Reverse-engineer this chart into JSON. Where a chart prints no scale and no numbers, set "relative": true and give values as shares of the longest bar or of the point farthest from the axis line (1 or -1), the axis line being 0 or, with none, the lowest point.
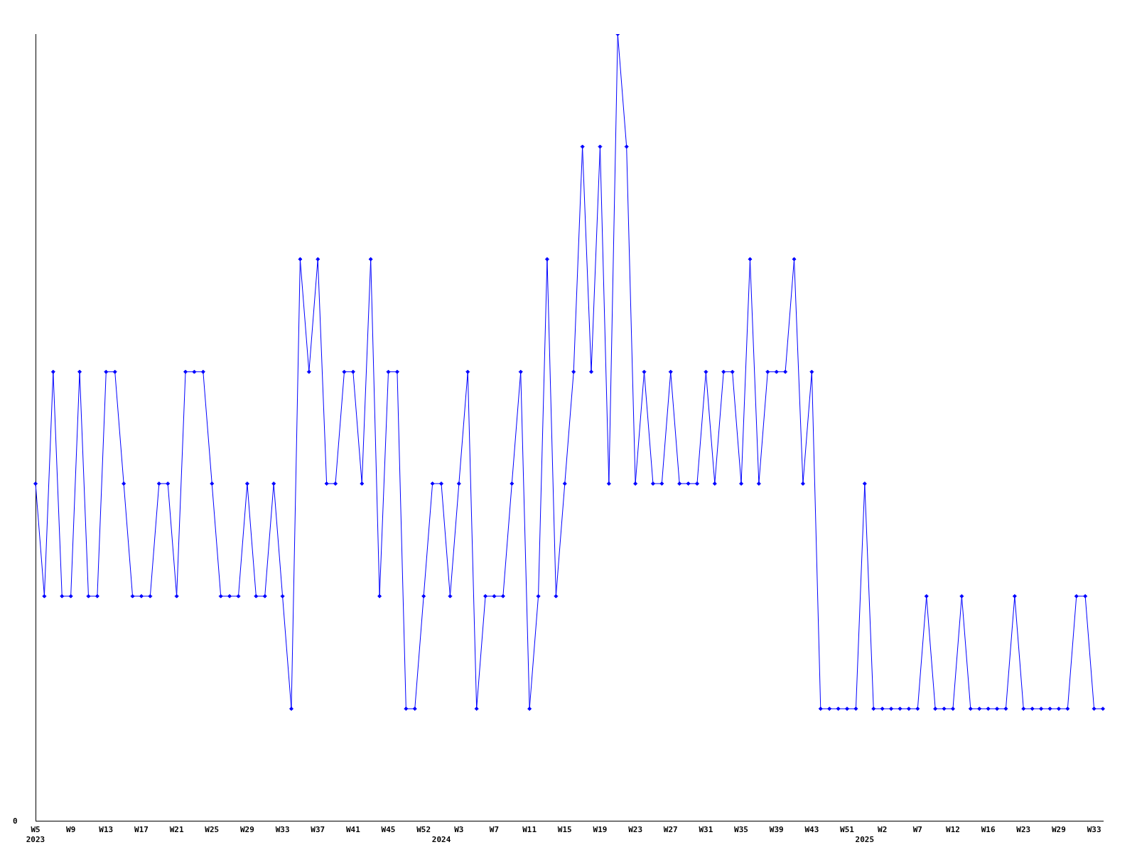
{
  "chart_data": {
    "type": "line",
    "relative": true,
    "color": "#0000ff",
    "marker": "diamond",
    "grid": false,
    "legend": false,
    "categories": [
      "W5",
      null,
      null,
      null,
      "W9",
      null,
      null,
      null,
      "W13",
      null,
      null,
      null,
      "W17",
      null,
      null,
      null,
      "W21",
      null,
      null,
      null,
      "W25",
      null,
      null,
      null,
      "W29",
      null,
      null,
      null,
      "W33",
      null,
      null,
      null,
      "W37",
      null,
      null,
      null,
      "W41",
      null,
      null,
      null,
      "W45",
      null,
      null,
      null,
      "W52",
      null,
      null,
      null,
      "W3",
      null,
      null,
      null,
      "W7",
      null,
      null,
      null,
      "W11",
      null,
      null,
      null,
      "W15",
      null,
      null,
      null,
      "W19",
      null,
      null,
      null,
      "W23",
      null,
      null,
      null,
      "W27",
      null,
      null,
      null,
      "W31",
      null,
      null,
      null,
      "W35",
      null,
      null,
      null,
      "W39",
      null,
      null,
      null,
      "W43",
      null,
      null,
      null,
      "W51",
      null,
      null,
      null,
      "W2",
      null,
      null,
      null,
      "W7",
      null,
      null,
      null,
      "W12",
      null,
      null,
      null,
      "W16",
      null,
      null,
      null,
      "W23",
      null,
      null,
      null,
      "W29",
      null,
      null,
      null,
      "W33",
      null
    ],
    "values": [
      0.429,
      0.286,
      0.571,
      0.286,
      0.286,
      0.571,
      0.286,
      0.286,
      0.571,
      0.571,
      0.429,
      0.286,
      0.286,
      0.286,
      0.429,
      0.429,
      0.286,
      0.571,
      0.571,
      0.571,
      0.429,
      0.286,
      0.286,
      0.286,
      0.429,
      0.286,
      0.286,
      0.429,
      0.286,
      0.143,
      0.714,
      0.571,
      0.714,
      0.429,
      0.429,
      0.571,
      0.571,
      0.429,
      0.714,
      0.286,
      0.571,
      0.571,
      0.143,
      0.143,
      0.286,
      0.429,
      0.429,
      0.286,
      0.429,
      0.571,
      0.143,
      0.286,
      0.286,
      0.286,
      0.429,
      0.571,
      0.143,
      0.286,
      0.714,
      0.286,
      0.429,
      0.571,
      0.857,
      0.571,
      0.857,
      0.429,
      1,
      0.857,
      0.429,
      0.571,
      0.429,
      0.429,
      0.571,
      0.429,
      0.429,
      0.429,
      0.571,
      0.429,
      0.571,
      0.571,
      0.429,
      0.714,
      0.429,
      0.571,
      0.571,
      0.571,
      0.714,
      0.429,
      0.571,
      0.143,
      0.143,
      0.143,
      0.143,
      0.143,
      0.429,
      0.143,
      0.143,
      0.143,
      0.143,
      0.143,
      0.143,
      0.286,
      0.143,
      0.143,
      0.143,
      0.286,
      0.143,
      0.143,
      0.143,
      0.143,
      0.143,
      0.286,
      0.143,
      0.143,
      0.143,
      0.143,
      0.143,
      0.143,
      0.286,
      0.286,
      0.143,
      0.143
    ],
    "annotations": [
      "0",
      "2023",
      "2024",
      "2025"
    ]
  }
}
